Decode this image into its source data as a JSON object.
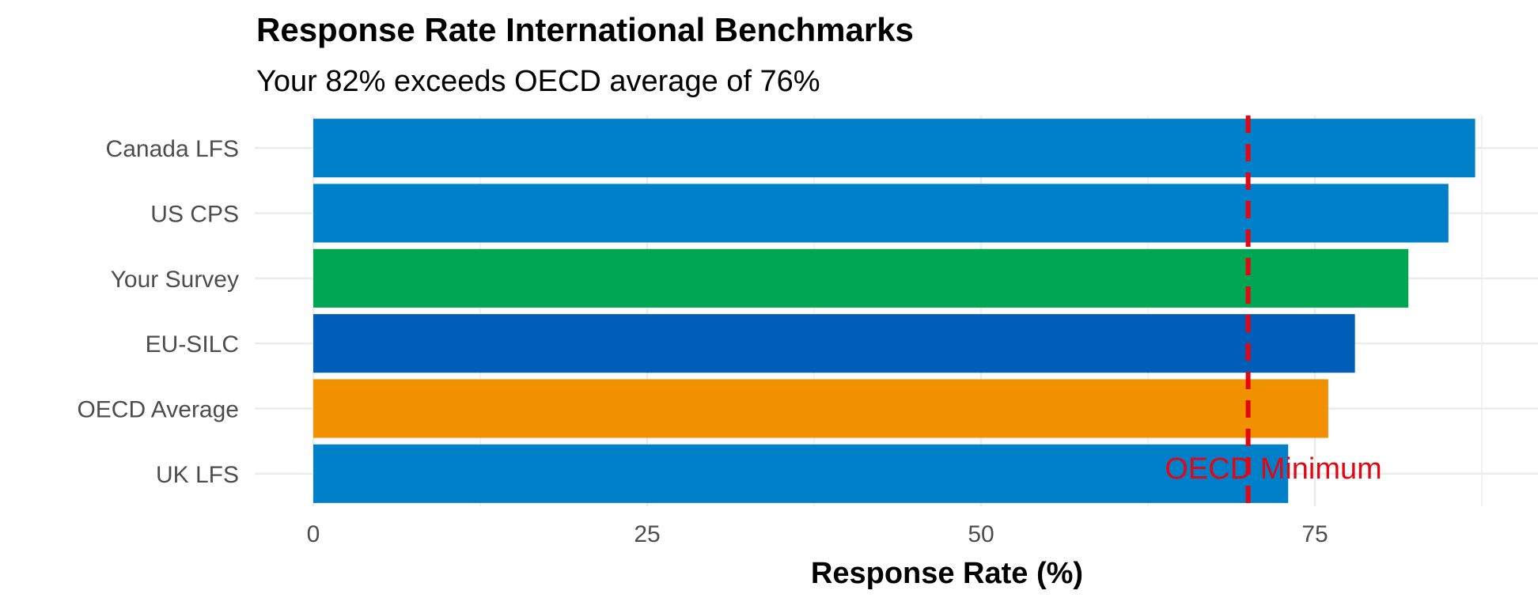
{
  "chart_data": {
    "type": "bar",
    "orientation": "horizontal",
    "title": "Response Rate International Benchmarks",
    "subtitle": "Your 82% exceeds OECD average of 76%",
    "xlabel": "Response Rate (%)",
    "ylabel": "",
    "xlim": [
      0,
      88
    ],
    "xticks": [
      0,
      25,
      50,
      75
    ],
    "grid": true,
    "legend": "none",
    "categories": [
      "Canada LFS",
      "US CPS",
      "Your Survey",
      "EU-SILC",
      "OECD Average",
      "UK LFS"
    ],
    "values": [
      87,
      85,
      82,
      78,
      76,
      73
    ],
    "colors": [
      "#0080C9",
      "#0080C9",
      "#00A651",
      "#005EB8",
      "#F29100",
      "#0080C9"
    ],
    "reference_line": {
      "value": 70,
      "color": "#E30613",
      "style": "dashed",
      "label": "OECD Minimum"
    }
  }
}
